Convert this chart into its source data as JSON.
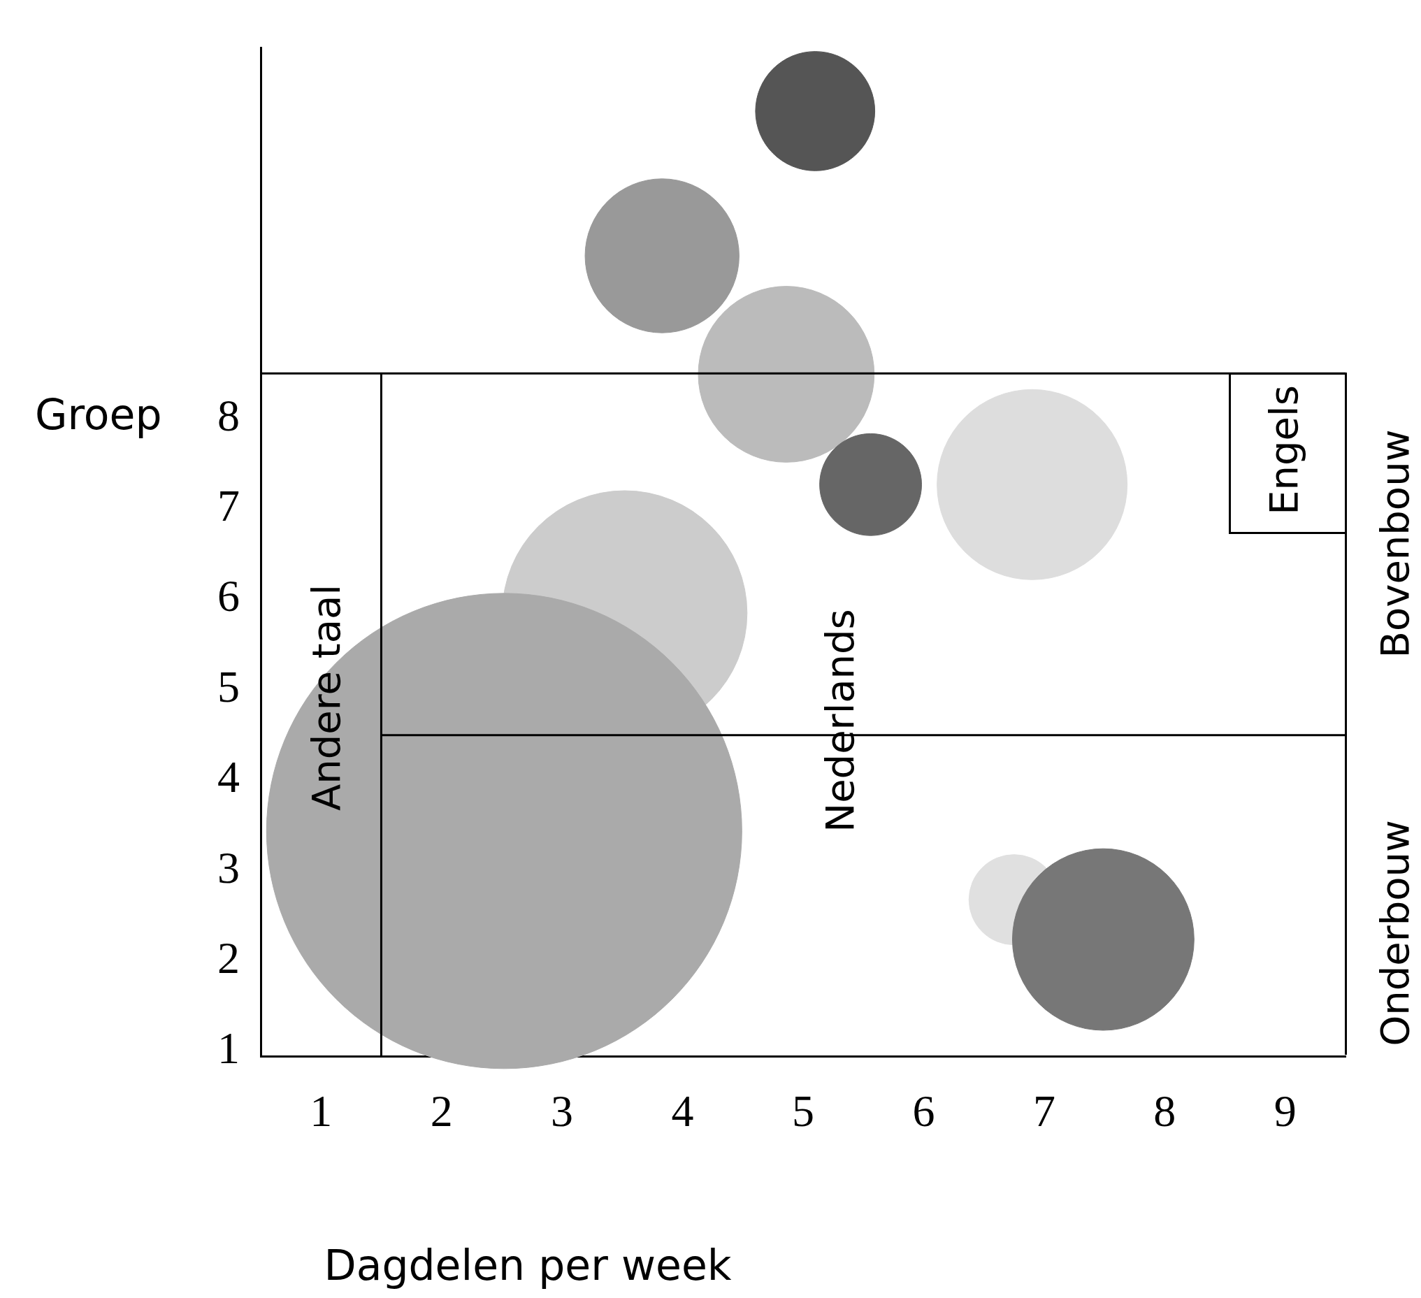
{
  "chart_data": {
    "type": "bubble",
    "xlabel": "Dagdelen per week",
    "ylabel": "Groep",
    "x": [
      5.1,
      3.83,
      4.86,
      5.56,
      6.9,
      3.52,
      2.52,
      6.75,
      7.49
    ],
    "values": [
      11.4,
      9.8,
      8.49,
      7.27,
      7.27,
      5.85,
      3.44,
      2.68,
      2.24
    ],
    "sizes": [
      0.063,
      0.105,
      0.137,
      0.046,
      0.16,
      0.265,
      1,
      0.036,
      0.146
    ],
    "colors": [
      "#555555",
      "#999999",
      "#bbbbbb",
      "#666666",
      "#dddddd",
      "#cccccc",
      "#aaaaaa",
      "#e0e0e0",
      "#777777"
    ],
    "xlim": [
      0.5,
      9.5
    ],
    "ylim": [
      0.95,
      12.1
    ],
    "xticks": [
      1,
      2,
      3,
      4,
      5,
      6,
      7,
      8,
      9
    ],
    "yticks": [
      1,
      2,
      3,
      4,
      5,
      6,
      7,
      8
    ],
    "ref_lines": [
      {
        "axis": "x",
        "value": 1.5
      },
      {
        "axis": "y",
        "value": 4.5
      },
      {
        "axis": "y",
        "value": 8.5
      }
    ],
    "annotations": [
      "Andere taal",
      "Nederlands",
      "Engels",
      "Bovenbouw",
      "Onderbouw"
    ],
    "grid": false,
    "legend": false
  }
}
